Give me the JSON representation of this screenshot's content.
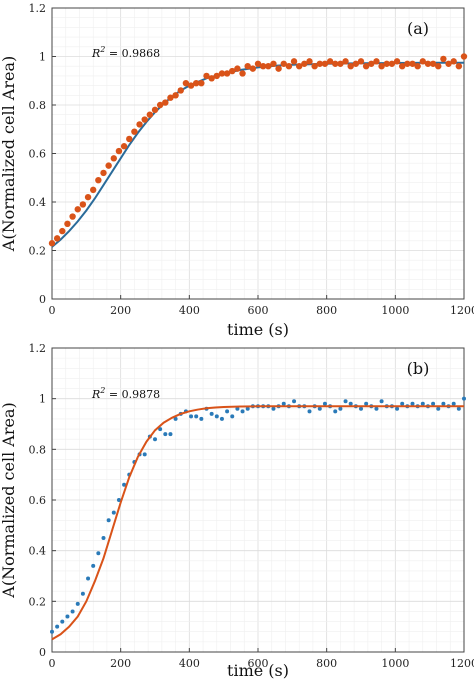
{
  "chart_data": [
    {
      "type": "scatter",
      "panel_label": "(a)",
      "r2_label": "R",
      "r2_value": "= 0.9868",
      "xlabel": "time (s)",
      "ylabel": "A(Normalized cell Area)",
      "xlim": [
        0,
        1200
      ],
      "ylim": [
        0,
        1.2
      ],
      "xticks": [
        "0",
        "200",
        "400",
        "600",
        "800",
        "1000",
        "1200"
      ],
      "yticks": [
        "0",
        "0.2",
        "0.4",
        "0.6",
        "0.8",
        "1",
        "1.2"
      ],
      "grid": true,
      "colors": {
        "points": "#d95319",
        "fit": "#2a6b9a"
      },
      "series": [
        {
          "kind": "points",
          "x": [
            0,
            15,
            30,
            45,
            60,
            75,
            90,
            105,
            120,
            135,
            150,
            165,
            180,
            195,
            210,
            225,
            240,
            255,
            270,
            285,
            300,
            315,
            330,
            345,
            360,
            375,
            390,
            405,
            420,
            435,
            450,
            465,
            480,
            495,
            510,
            525,
            540,
            555,
            570,
            585,
            600,
            615,
            630,
            645,
            660,
            675,
            690,
            705,
            720,
            735,
            750,
            765,
            780,
            795,
            810,
            825,
            840,
            855,
            870,
            885,
            900,
            915,
            930,
            945,
            960,
            975,
            990,
            1005,
            1020,
            1035,
            1050,
            1065,
            1080,
            1095,
            1110,
            1125,
            1140,
            1155,
            1170,
            1185,
            1200
          ],
          "y": [
            0.23,
            0.25,
            0.28,
            0.31,
            0.34,
            0.37,
            0.39,
            0.42,
            0.45,
            0.49,
            0.52,
            0.55,
            0.58,
            0.61,
            0.63,
            0.66,
            0.69,
            0.72,
            0.74,
            0.76,
            0.78,
            0.8,
            0.81,
            0.83,
            0.84,
            0.86,
            0.89,
            0.88,
            0.89,
            0.89,
            0.92,
            0.91,
            0.92,
            0.93,
            0.93,
            0.94,
            0.95,
            0.93,
            0.96,
            0.95,
            0.97,
            0.96,
            0.96,
            0.97,
            0.95,
            0.97,
            0.96,
            0.98,
            0.96,
            0.97,
            0.98,
            0.96,
            0.97,
            0.97,
            0.98,
            0.97,
            0.97,
            0.98,
            0.96,
            0.97,
            0.98,
            0.96,
            0.97,
            0.98,
            0.96,
            0.97,
            0.97,
            0.98,
            0.96,
            0.97,
            0.97,
            0.96,
            0.98,
            0.97,
            0.97,
            0.96,
            0.99,
            0.97,
            0.98,
            0.96,
            1.0
          ]
        },
        {
          "kind": "fit",
          "x": [
            0,
            25,
            50,
            75,
            100,
            125,
            150,
            175,
            200,
            225,
            250,
            275,
            300,
            325,
            350,
            375,
            400,
            425,
            450,
            475,
            500,
            550,
            600,
            650,
            700,
            800,
            900,
            1000,
            1100,
            1200
          ],
          "y": [
            0.215,
            0.245,
            0.28,
            0.32,
            0.365,
            0.415,
            0.47,
            0.525,
            0.58,
            0.635,
            0.685,
            0.73,
            0.77,
            0.805,
            0.835,
            0.86,
            0.88,
            0.895,
            0.91,
            0.92,
            0.93,
            0.945,
            0.955,
            0.962,
            0.966,
            0.97,
            0.972,
            0.973,
            0.974,
            0.974
          ]
        }
      ]
    },
    {
      "type": "scatter",
      "panel_label": "(b)",
      "r2_label": "R",
      "r2_value": "= 0.9878",
      "xlabel": "time (s)",
      "ylabel": "A(Normalized cell Area)",
      "xlim": [
        0,
        1200
      ],
      "ylim": [
        0,
        1.2
      ],
      "xticks": [
        "0",
        "200",
        "400",
        "600",
        "800",
        "1000",
        "1200"
      ],
      "yticks": [
        "0",
        "0.2",
        "0.4",
        "0.6",
        "0.8",
        "1",
        "1.2"
      ],
      "grid": true,
      "colors": {
        "points": "#2a7ab8",
        "fit": "#d95319"
      },
      "series": [
        {
          "kind": "points",
          "x": [
            0,
            15,
            30,
            45,
            60,
            75,
            90,
            105,
            120,
            135,
            150,
            165,
            180,
            195,
            210,
            225,
            240,
            255,
            270,
            285,
            300,
            315,
            330,
            345,
            360,
            375,
            390,
            405,
            420,
            435,
            450,
            465,
            480,
            495,
            510,
            525,
            540,
            555,
            570,
            585,
            600,
            615,
            630,
            645,
            660,
            675,
            690,
            705,
            720,
            735,
            750,
            765,
            780,
            795,
            810,
            825,
            840,
            855,
            870,
            885,
            900,
            915,
            930,
            945,
            960,
            975,
            990,
            1005,
            1020,
            1035,
            1050,
            1065,
            1080,
            1095,
            1110,
            1125,
            1140,
            1155,
            1170,
            1185,
            1200
          ],
          "y": [
            0.08,
            0.1,
            0.12,
            0.14,
            0.16,
            0.19,
            0.23,
            0.29,
            0.34,
            0.39,
            0.45,
            0.52,
            0.55,
            0.6,
            0.66,
            0.7,
            0.75,
            0.78,
            0.78,
            0.85,
            0.84,
            0.88,
            0.86,
            0.86,
            0.92,
            0.94,
            0.95,
            0.93,
            0.93,
            0.92,
            0.96,
            0.94,
            0.93,
            0.92,
            0.95,
            0.93,
            0.96,
            0.95,
            0.96,
            0.97,
            0.97,
            0.97,
            0.97,
            0.96,
            0.97,
            0.98,
            0.97,
            0.99,
            0.97,
            0.97,
            0.95,
            0.97,
            0.96,
            0.98,
            0.97,
            0.95,
            0.96,
            0.99,
            0.98,
            0.97,
            0.96,
            0.98,
            0.97,
            0.96,
            0.99,
            0.97,
            0.97,
            0.96,
            0.98,
            0.97,
            0.98,
            0.97,
            0.98,
            0.97,
            0.98,
            0.96,
            0.98,
            0.97,
            0.98,
            0.96,
            1.0
          ]
        },
        {
          "kind": "fit",
          "x": [
            0,
            25,
            50,
            75,
            100,
            125,
            150,
            175,
            200,
            225,
            250,
            275,
            300,
            325,
            350,
            375,
            400,
            425,
            450,
            475,
            500,
            550,
            600,
            650,
            700,
            800,
            900,
            1000,
            1100,
            1200
          ],
          "y": [
            0.05,
            0.07,
            0.1,
            0.14,
            0.2,
            0.28,
            0.37,
            0.48,
            0.59,
            0.69,
            0.77,
            0.83,
            0.875,
            0.905,
            0.925,
            0.94,
            0.95,
            0.957,
            0.962,
            0.965,
            0.967,
            0.969,
            0.97,
            0.97,
            0.97,
            0.97,
            0.97,
            0.97,
            0.97,
            0.97
          ]
        }
      ]
    }
  ]
}
